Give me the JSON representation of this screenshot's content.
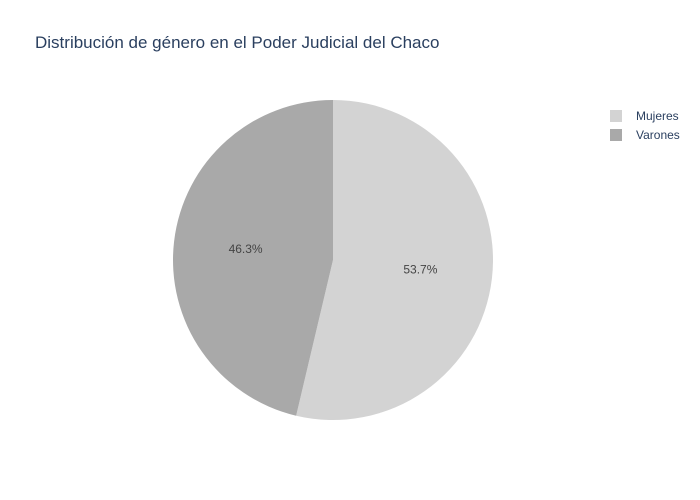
{
  "chart_data": {
    "type": "pie",
    "title": "Distribución de género en el Poder Judicial del Chaco",
    "slices": [
      {
        "label": "Mujeres",
        "value": 53.7,
        "text": "53.7%",
        "color": "#d3d3d3"
      },
      {
        "label": "Varones",
        "value": 46.3,
        "text": "46.3%",
        "color": "#a9a9a9"
      }
    ],
    "start_angle_deg": 90,
    "direction": "clockwise",
    "legend": {
      "position": "top-right",
      "items": [
        "Mujeres",
        "Varones"
      ]
    }
  }
}
